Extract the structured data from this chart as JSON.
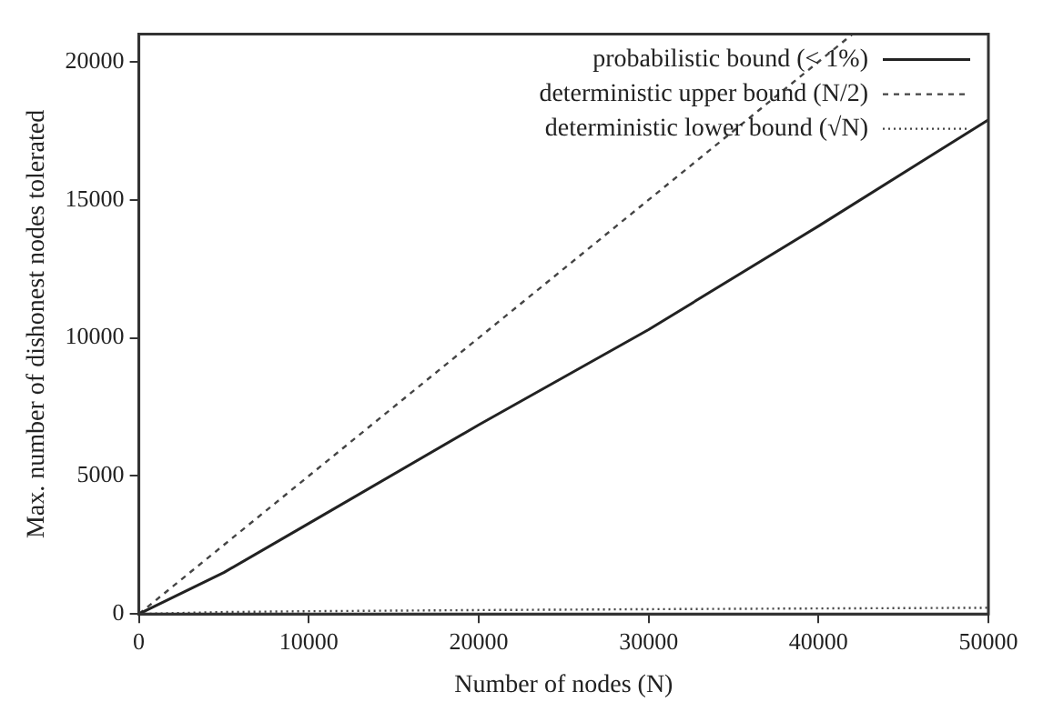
{
  "chart_data": {
    "type": "line",
    "xlabel": "Number of nodes (N)",
    "ylabel": "Max. number of dishonest nodes tolerated",
    "xlim": [
      0,
      50000
    ],
    "xticks": [
      0,
      10000,
      20000,
      30000,
      40000,
      50000
    ],
    "ylim": [
      0,
      21000
    ],
    "yticks": [
      0,
      5000,
      10000,
      15000,
      20000
    ],
    "grid": false,
    "legend": "top right",
    "marker": "none",
    "series": [
      {
        "name": "probabilistic bound (< 1%)",
        "color": "#222222",
        "line_style": "solid",
        "x": [
          0,
          5000,
          10000,
          20000,
          30000,
          40000,
          50000
        ],
        "values": [
          0,
          1500,
          3280,
          6850,
          10300,
          14050,
          17900
        ]
      },
      {
        "name": "deterministic upper bound (N/2)",
        "color": "#444444",
        "line_style": "dashed",
        "x": [
          0,
          42000
        ],
        "values": [
          0,
          21000
        ]
      },
      {
        "name": "deterministic lower bound (√N)",
        "color": "#444444",
        "line_style": "dotted",
        "x": [
          0,
          5000,
          10000,
          20000,
          30000,
          40000,
          50000
        ],
        "values": [
          0,
          71,
          100,
          141,
          173,
          200,
          224
        ]
      }
    ]
  }
}
